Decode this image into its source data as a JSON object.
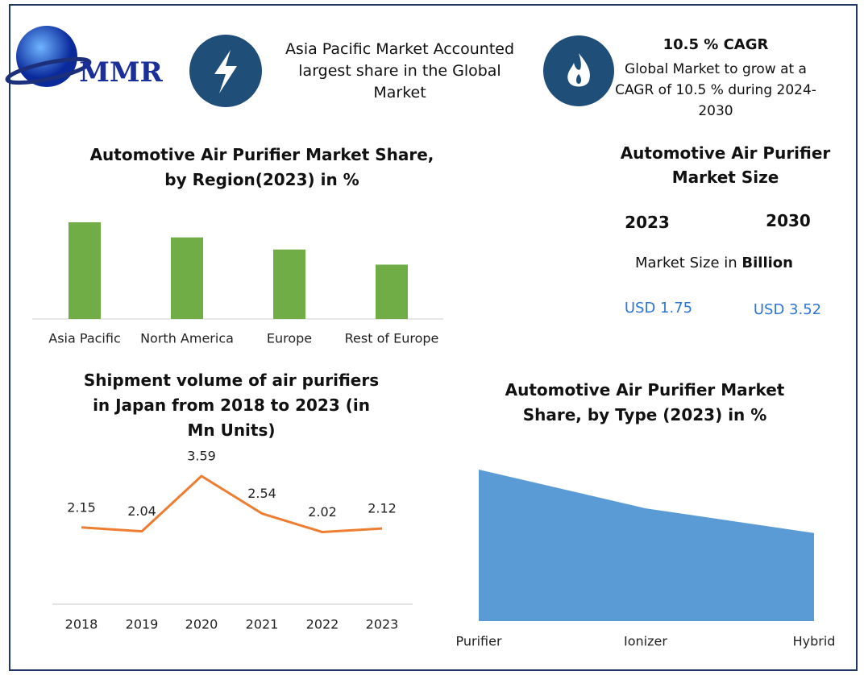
{
  "header": {
    "logo": "MMR",
    "highlight": "Asia Pacific Market Accounted largest share in the Global Market",
    "cagr_title": "10.5 % CAGR",
    "cagr_text": "Global Market to grow at a CAGR of 10.5 % during 2024-2030"
  },
  "market_size": {
    "title": "Automotive Air Purifier Market Size",
    "years": [
      "2023",
      "2030"
    ],
    "unit_prefix": "Market Size in",
    "unit": "Billion",
    "values": [
      "USD 1.75",
      "USD 3.52"
    ]
  },
  "chart_data": [
    {
      "type": "bar",
      "title": "Automotive Air Purifier Market Share, by Region(2023) in %",
      "categories": [
        "Asia Pacific",
        "North America",
        "Europe",
        "Rest of Europe"
      ],
      "values": [
        32,
        27,
        23,
        18
      ],
      "color": "#70ad47"
    },
    {
      "type": "line",
      "title": "Shipment volume of air purifiers in Japan from 2018 to 2023 (in Mn Units)",
      "categories": [
        "2018",
        "2019",
        "2020",
        "2021",
        "2022",
        "2023"
      ],
      "values": [
        2.15,
        2.04,
        3.59,
        2.54,
        2.02,
        2.12
      ],
      "color": "#ed7d31"
    },
    {
      "type": "area",
      "title": "Automotive Air Purifier Market Share, by Type (2023) in %",
      "categories": [
        "Purifier",
        "Ionizer",
        "Hybrid"
      ],
      "values": [
        43,
        32,
        25
      ],
      "color": "#5b9bd5"
    }
  ]
}
